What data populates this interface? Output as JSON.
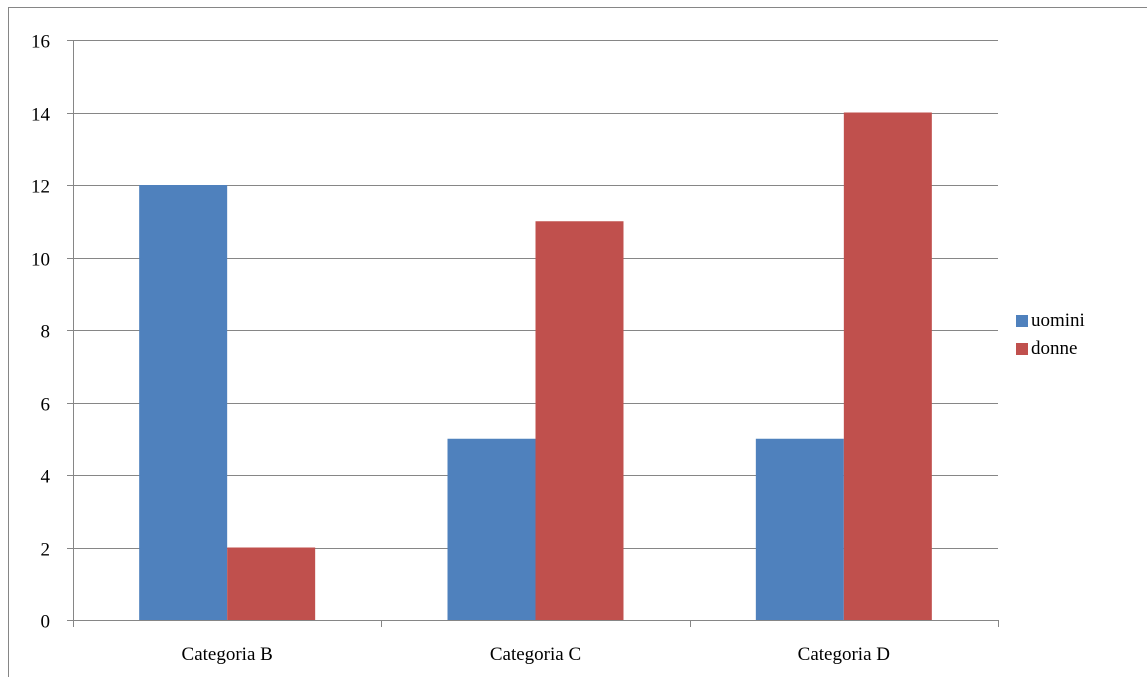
{
  "chart_data": {
    "type": "bar",
    "categories": [
      "Categoria B",
      "Categoria C",
      "Categoria D"
    ],
    "series": [
      {
        "name": "uomini",
        "values": [
          12,
          5,
          5
        ],
        "color": "#4F81BD"
      },
      {
        "name": "donne",
        "values": [
          2,
          11,
          14
        ],
        "color": "#C0504D"
      }
    ],
    "title": "",
    "xlabel": "",
    "ylabel": "",
    "ylim": [
      0,
      16
    ],
    "yticks": [
      0,
      2,
      4,
      6,
      8,
      10,
      12,
      14,
      16
    ],
    "grid": true,
    "legend_position": "right"
  }
}
